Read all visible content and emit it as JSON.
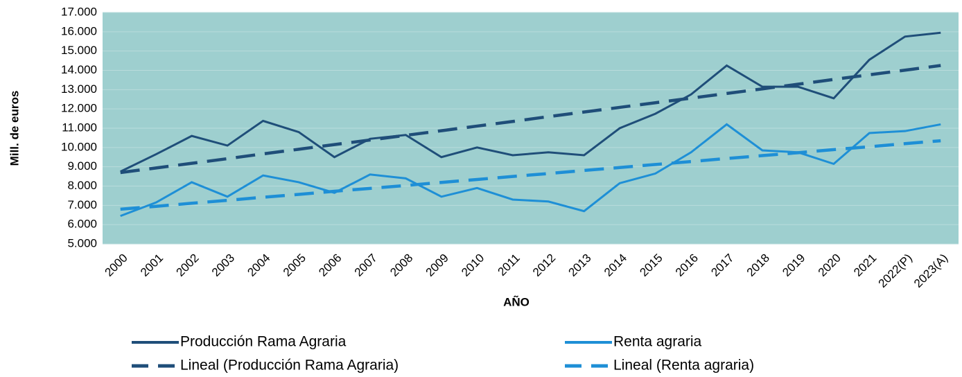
{
  "chart_data": {
    "type": "line",
    "y_label": "Mill. de euros",
    "x_label": "AÑO",
    "categories": [
      "2000",
      "2001",
      "2002",
      "2003",
      "2004",
      "2005",
      "2006",
      "2007",
      "2008",
      "2009",
      "2010",
      "2011",
      "2012",
      "2013",
      "2014",
      "2015",
      "2016",
      "2017",
      "2018",
      "2019",
      "2020",
      "2021",
      "2022(P)",
      "2023(A)"
    ],
    "series": [
      {
        "name": "Producción Rama Agraria",
        "color": "#1f4e79",
        "dash": false,
        "values": [
          8750,
          9650,
          10600,
          10100,
          11380,
          10800,
          9500,
          10450,
          10650,
          9500,
          10000,
          9600,
          9750,
          9600,
          11000,
          11750,
          12750,
          14250,
          13150,
          13150,
          12550,
          14550,
          15750,
          15950
        ]
      },
      {
        "name": "Renta agraria",
        "color": "#1e8fd6",
        "dash": false,
        "values": [
          6450,
          7150,
          8200,
          7450,
          8550,
          8200,
          7650,
          8600,
          8400,
          7450,
          7900,
          7300,
          7200,
          6700,
          8150,
          8650,
          9750,
          11200,
          9850,
          9750,
          9150,
          10750,
          10850,
          11200
        ]
      },
      {
        "name": "Lineal (Producción Rama Agraria)",
        "color": "#1f4e79",
        "dash": true,
        "values": [
          8700,
          8940,
          9180,
          9420,
          9670,
          9910,
          10150,
          10390,
          10630,
          10870,
          11110,
          11350,
          11600,
          11840,
          12080,
          12320,
          12560,
          12800,
          13040,
          13280,
          13530,
          13770,
          14010,
          14250
        ]
      },
      {
        "name": "Lineal (Renta agraria)",
        "color": "#1e8fd6",
        "dash": true,
        "values": [
          6800,
          6950,
          7110,
          7260,
          7420,
          7570,
          7730,
          7880,
          8030,
          8190,
          8340,
          8500,
          8650,
          8810,
          8960,
          9120,
          9270,
          9430,
          9580,
          9730,
          9890,
          10040,
          10200,
          10350
        ]
      }
    ],
    "ylim": [
      5000,
      17000
    ],
    "yticks": [
      {
        "value": 5000,
        "label": "5.000"
      },
      {
        "value": 6000,
        "label": "6.000"
      },
      {
        "value": 7000,
        "label": "7.000"
      },
      {
        "value": 8000,
        "label": "8.000"
      },
      {
        "value": 9000,
        "label": "9.000"
      },
      {
        "value": 10000,
        "label": "10.000"
      },
      {
        "value": 11000,
        "label": "11.000"
      },
      {
        "value": 12000,
        "label": "12.000"
      },
      {
        "value": 13000,
        "label": "13.000"
      },
      {
        "value": 14000,
        "label": "14.000"
      },
      {
        "value": 15000,
        "label": "15.000"
      },
      {
        "value": 16000,
        "label": "16.000"
      },
      {
        "value": 17000,
        "label": "17.000"
      }
    ],
    "grid": true,
    "legend": "bottom",
    "background": "#9ecfcf"
  }
}
